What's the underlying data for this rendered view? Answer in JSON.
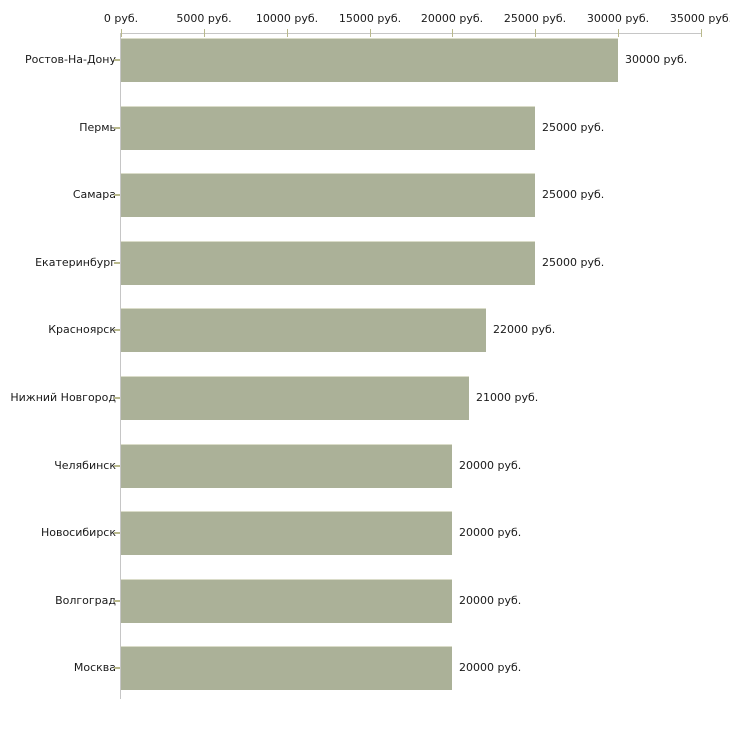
{
  "chart_data": {
    "type": "bar",
    "orientation": "horizontal",
    "title": "",
    "categories": [
      "Ростов-На-Дону",
      "Пермь",
      "Самара",
      "Екатеринбург",
      "Красноярск",
      "Нижний Новгород",
      "Челябинск",
      "Новосибирск",
      "Волгоград",
      "Москва"
    ],
    "values": [
      30000,
      25000,
      25000,
      25000,
      22000,
      21000,
      20000,
      20000,
      20000,
      20000
    ],
    "value_labels": [
      "30000 руб.",
      "25000 руб.",
      "25000 руб.",
      "25000 руб.",
      "22000 руб.",
      "21000 руб.",
      "20000 руб.",
      "20000 руб.",
      "20000 руб.",
      "20000 руб."
    ],
    "x_ticks": [
      0,
      5000,
      10000,
      15000,
      20000,
      25000,
      30000,
      35000
    ],
    "x_tick_labels": [
      "0 руб.",
      "5000 руб.",
      "10000 руб.",
      "15000 руб.",
      "20000 руб.",
      "25000 руб.",
      "30000 руб.",
      "35000 руб."
    ],
    "xlim": [
      0,
      35000
    ],
    "unit": "руб.",
    "grid": false,
    "legend": "none",
    "colors": {
      "bar": "#abb198",
      "bar_edge": "#dadcc9",
      "axis": "#c6c6c6",
      "tick": "#b9b98c",
      "text": "#1a1a1a",
      "background": "#ffffff"
    }
  }
}
